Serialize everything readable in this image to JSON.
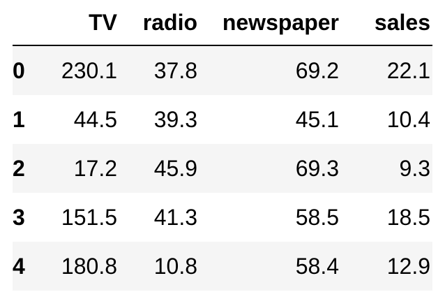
{
  "table": {
    "columns": [
      "TV",
      "radio",
      "newspaper",
      "sales"
    ],
    "rows": [
      {
        "index": "0",
        "values": [
          "230.1",
          "37.8",
          "69.2",
          "22.1"
        ]
      },
      {
        "index": "1",
        "values": [
          "44.5",
          "39.3",
          "45.1",
          "10.4"
        ]
      },
      {
        "index": "2",
        "values": [
          "17.2",
          "45.9",
          "69.3",
          "9.3"
        ]
      },
      {
        "index": "3",
        "values": [
          "151.5",
          "41.3",
          "58.5",
          "18.5"
        ]
      },
      {
        "index": "4",
        "values": [
          "180.8",
          "10.8",
          "58.4",
          "12.9"
        ]
      }
    ]
  },
  "colors": {
    "striped_row_background": "#f5f5f5",
    "header_rule": "#000000",
    "text": "#000000"
  }
}
